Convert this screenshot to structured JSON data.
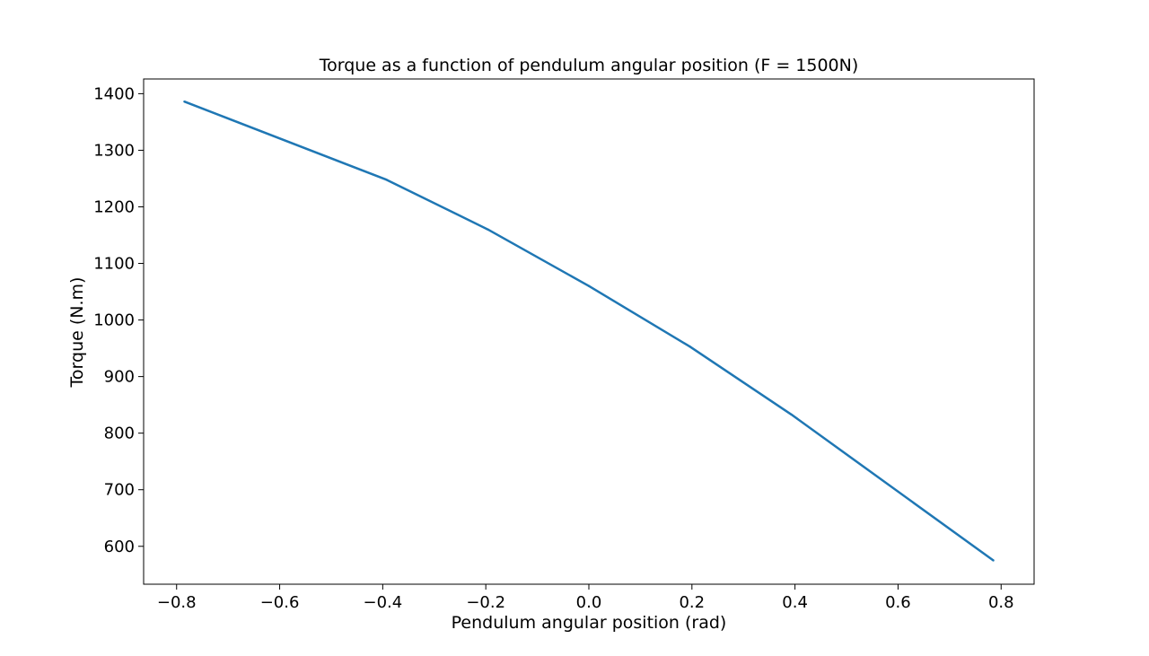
{
  "chart_data": {
    "type": "line",
    "title": "Torque as a function of pendulum angular position (F = 1500N)",
    "xlabel": "Pendulum angular position (rad)",
    "ylabel": "Torque (N.m)",
    "xlim": [
      -0.864,
      0.864
    ],
    "ylim": [
      533,
      1426
    ],
    "xticks": [
      -0.8,
      -0.6,
      -0.4,
      -0.2,
      0.0,
      0.2,
      0.4,
      0.6,
      0.8
    ],
    "xtick_labels": [
      "−0.8",
      "−0.6",
      "−0.4",
      "−0.2",
      "0.0",
      "0.2",
      "0.4",
      "0.6",
      "0.8"
    ],
    "yticks": [
      600,
      700,
      800,
      900,
      1000,
      1100,
      1200,
      1300,
      1400
    ],
    "ytick_labels": [
      "600",
      "700",
      "800",
      "900",
      "1000",
      "1100",
      "1200",
      "1300",
      "1400"
    ],
    "grid": false,
    "series": [
      {
        "color": "#1f77b4",
        "x": [
          -0.785,
          -0.393,
          -0.196,
          0.0,
          0.196,
          0.393,
          0.785
        ],
        "y": [
          1386,
          1248,
          1160,
          1060,
          953,
          833,
          575
        ]
      }
    ]
  }
}
